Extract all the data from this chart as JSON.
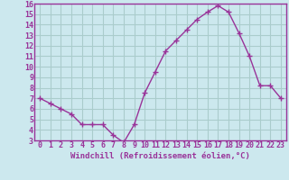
{
  "x": [
    0,
    1,
    2,
    3,
    4,
    5,
    6,
    7,
    8,
    9,
    10,
    11,
    12,
    13,
    14,
    15,
    16,
    17,
    18,
    19,
    20,
    21,
    22,
    23
  ],
  "y": [
    7.0,
    6.5,
    6.0,
    5.5,
    4.5,
    4.5,
    4.5,
    3.5,
    2.8,
    4.5,
    7.5,
    9.5,
    11.5,
    12.5,
    13.5,
    14.5,
    15.2,
    15.8,
    15.2,
    13.2,
    11.0,
    8.2,
    8.2,
    7.0
  ],
  "line_color": "#993399",
  "marker": "+",
  "marker_size": 4,
  "bg_color": "#cce8ee",
  "grid_color": "#aacccc",
  "xlabel": "Windchill (Refroidissement éolien,°C)",
  "xlim": [
    -0.5,
    23.5
  ],
  "ylim": [
    3,
    16
  ],
  "yticks": [
    3,
    4,
    5,
    6,
    7,
    8,
    9,
    10,
    11,
    12,
    13,
    14,
    15,
    16
  ],
  "xticks": [
    0,
    1,
    2,
    3,
    4,
    5,
    6,
    7,
    8,
    9,
    10,
    11,
    12,
    13,
    14,
    15,
    16,
    17,
    18,
    19,
    20,
    21,
    22,
    23
  ],
  "label_color": "#993399",
  "spine_color": "#993399",
  "tick_fontsize": 6,
  "xlabel_fontsize": 6.5
}
